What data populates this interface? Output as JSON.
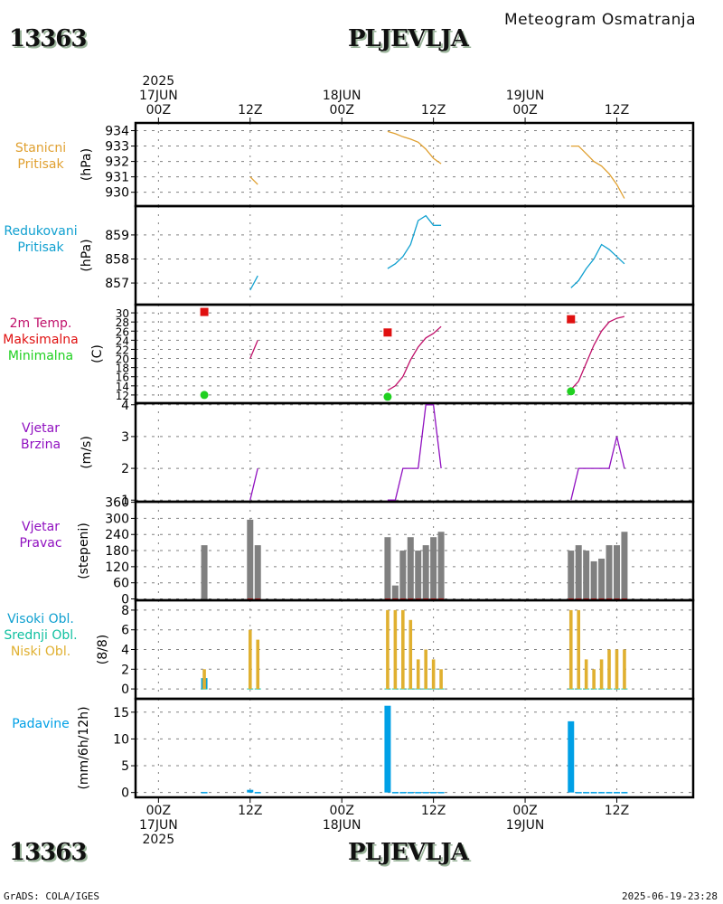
{
  "header": {
    "station_id": "13363",
    "station_name": "PLJEVLJA",
    "subtitle": "Meteogram Osmatranja"
  },
  "footer": {
    "station_id": "13363",
    "station_name": "PLJEVLJA",
    "credit": "GrADS: COLA/IGES",
    "timestamp": "2025-06-19-23:28"
  },
  "time_axis": {
    "top_labels": [
      {
        "hour": 0,
        "lines": [
          "2025",
          "17JUN",
          "00Z"
        ]
      },
      {
        "hour": 12,
        "lines": [
          "12Z"
        ]
      },
      {
        "hour": 24,
        "lines": [
          "18JUN",
          "00Z"
        ]
      },
      {
        "hour": 36,
        "lines": [
          "12Z"
        ]
      },
      {
        "hour": 48,
        "lines": [
          "19JUN",
          "00Z"
        ]
      },
      {
        "hour": 60,
        "lines": [
          "12Z"
        ]
      }
    ],
    "bottom_labels": [
      {
        "hour": 0,
        "lines": [
          "00Z",
          "17JUN",
          "2025"
        ]
      },
      {
        "hour": 12,
        "lines": [
          "12Z"
        ]
      },
      {
        "hour": 24,
        "lines": [
          "00Z",
          "18JUN"
        ]
      },
      {
        "hour": 36,
        "lines": [
          "12Z"
        ]
      },
      {
        "hour": 48,
        "lines": [
          "00Z",
          "19JUN"
        ]
      },
      {
        "hour": 60,
        "lines": [
          "12Z"
        ]
      }
    ]
  },
  "colors": {
    "station_pressure": "#e0a030",
    "reduced_pressure": "#10a0d0",
    "temp": "#c0106a",
    "temp_max": "#e01010",
    "temp_min": "#20d020",
    "wind_speed": "#9010c0",
    "wind_dir": "#808080",
    "cloud_high": "#10a0d0",
    "cloud_mid": "#10c0a0",
    "cloud_low": "#e0b030",
    "precip": "#00a0e6"
  },
  "chart_data": [
    {
      "type": "line",
      "id": "station_pressure",
      "labels": [
        "Stanicni",
        "Pritisak"
      ],
      "ylabel": "(hPa)",
      "yticks": [
        930,
        931,
        932,
        933,
        934
      ],
      "ylim": [
        929.1,
        934.5
      ],
      "xlim_hours": [
        -3,
        70
      ],
      "segments": [
        {
          "x": [
            12,
            13
          ],
          "y": [
            931.0,
            930.5
          ]
        },
        {
          "x": [
            30,
            31,
            32,
            33,
            34,
            35,
            36,
            37
          ],
          "y": [
            933.95,
            933.8,
            933.6,
            933.45,
            933.25,
            932.8,
            932.2,
            931.85
          ]
        },
        {
          "x": [
            54,
            55,
            56,
            57,
            58,
            59,
            60,
            61
          ],
          "y": [
            933.0,
            933.0,
            932.5,
            932.0,
            931.7,
            931.2,
            930.5,
            929.6
          ]
        }
      ]
    },
    {
      "type": "line",
      "id": "reduced_pressure",
      "labels": [
        "Redukovani",
        "Pritisak"
      ],
      "ylabel": "(hPa)",
      "yticks": [
        857,
        858,
        859
      ],
      "ylim": [
        856.1,
        860.2
      ],
      "xlim_hours": [
        -3,
        70
      ],
      "segments": [
        {
          "x": [
            12,
            13
          ],
          "y": [
            856.7,
            857.3
          ]
        },
        {
          "x": [
            30,
            31,
            32,
            33,
            34,
            35,
            36,
            37
          ],
          "y": [
            857.6,
            857.8,
            858.1,
            858.6,
            859.6,
            859.8,
            859.4,
            859.4
          ]
        },
        {
          "x": [
            54,
            55,
            56,
            57,
            58,
            59,
            60,
            61
          ],
          "y": [
            856.8,
            857.1,
            857.6,
            858.0,
            858.6,
            858.4,
            858.1,
            857.8
          ]
        }
      ]
    },
    {
      "type": "line",
      "id": "temperature",
      "labels": [
        "2m Temp.",
        "Maksimalna",
        "Minimalna"
      ],
      "ylabel": "(C)",
      "yticks": [
        12,
        14,
        16,
        18,
        20,
        22,
        24,
        26,
        28,
        30
      ],
      "ylim": [
        10.2,
        31.8
      ],
      "xlim_hours": [
        -3,
        70
      ],
      "segments": [
        {
          "x": [
            12,
            13
          ],
          "y": [
            20.0,
            24.0
          ]
        },
        {
          "x": [
            30,
            31,
            32,
            33,
            34,
            35,
            36,
            37
          ],
          "y": [
            13.0,
            14.0,
            16.0,
            19.7,
            22.5,
            24.5,
            25.5,
            27.0
          ]
        },
        {
          "x": [
            54,
            55,
            56,
            57,
            58,
            59,
            60,
            61
          ],
          "y": [
            13.2,
            15.0,
            19.0,
            22.9,
            26.0,
            28.0,
            28.8,
            29.2
          ]
        }
      ],
      "max": [
        {
          "x": 6,
          "y": 30.2
        },
        {
          "x": 30,
          "y": 25.7
        },
        {
          "x": 54,
          "y": 28.6
        }
      ],
      "min": [
        {
          "x": 6,
          "y": 12.0
        },
        {
          "x": 30,
          "y": 11.6
        },
        {
          "x": 54,
          "y": 12.8
        }
      ]
    },
    {
      "type": "line",
      "id": "wind_speed",
      "labels": [
        "Vjetar",
        "Brzina"
      ],
      "ylabel": "(m/s)",
      "yticks": [
        1,
        2,
        3,
        4
      ],
      "ylim": [
        0.95,
        4.05
      ],
      "xlim_hours": [
        -3,
        70
      ],
      "segments": [
        {
          "x": [
            12,
            13
          ],
          "y": [
            1,
            2
          ]
        },
        {
          "x": [
            30,
            31,
            32,
            33,
            34,
            35,
            36,
            37
          ],
          "y": [
            1,
            1,
            2,
            2,
            2,
            4,
            4,
            2
          ]
        },
        {
          "x": [
            54,
            55,
            56,
            57,
            58,
            59,
            60,
            61
          ],
          "y": [
            1,
            2,
            2,
            2,
            2,
            2,
            3,
            2
          ]
        }
      ]
    },
    {
      "type": "bar",
      "id": "wind_direction",
      "labels": [
        "Vjetar",
        "Pravac"
      ],
      "ylabel": "(stepeni)",
      "yticks": [
        0,
        60,
        120,
        180,
        240,
        300,
        360
      ],
      "ylim": [
        -5,
        362
      ],
      "xlim_hours": [
        -3,
        70
      ],
      "x": [
        6,
        12,
        13,
        30,
        31,
        32,
        33,
        34,
        35,
        36,
        37,
        54,
        55,
        56,
        57,
        58,
        59,
        60,
        61
      ],
      "values": [
        200,
        295,
        200,
        230,
        50,
        180,
        230,
        180,
        200,
        230,
        250,
        180,
        200,
        180,
        140,
        150,
        200,
        200,
        250
      ],
      "calm_marks_x": [
        12,
        13,
        30,
        31,
        32,
        33,
        34,
        35,
        36,
        37,
        54,
        55,
        56,
        57,
        58,
        59,
        60,
        61
      ]
    },
    {
      "type": "bar",
      "id": "clouds",
      "labels": [
        "Visoki Obl.",
        "Srednji Obl.",
        "Niski Obl."
      ],
      "ylabel": "(8/8)",
      "yticks": [
        0,
        2,
        4,
        6,
        8
      ],
      "ylim": [
        -1,
        9
      ],
      "xlim_hours": [
        -3,
        70
      ],
      "x": [
        6,
        12,
        13,
        30,
        31,
        32,
        33,
        34,
        35,
        36,
        37,
        54,
        55,
        56,
        57,
        58,
        59,
        60,
        61
      ],
      "series": [
        {
          "name": "Visoki Obl.",
          "values": [
            1.1,
            0,
            0,
            0,
            0,
            0,
            0,
            0,
            0,
            0,
            0,
            0,
            0,
            0,
            0,
            0,
            0,
            0,
            0
          ]
        },
        {
          "name": "Srednji Obl.",
          "values": [
            0,
            0,
            0,
            0,
            0,
            0,
            0,
            0,
            0,
            0,
            0,
            0,
            0,
            0,
            0,
            0,
            0,
            0,
            0
          ]
        },
        {
          "name": "Niski Obl.",
          "values": [
            2,
            6,
            5,
            8,
            8,
            8,
            7,
            3,
            4,
            3,
            2,
            8,
            8,
            3,
            2,
            3,
            4,
            4,
            4
          ]
        }
      ]
    },
    {
      "type": "bar",
      "id": "precipitation",
      "labels": [
        "Padavine"
      ],
      "ylabel": "(mm/6h/12h)",
      "yticks": [
        0,
        5,
        10,
        15
      ],
      "ylim": [
        -0.9,
        17.5
      ],
      "xlim_hours": [
        -3,
        70
      ],
      "x": [
        6,
        12,
        13,
        30,
        31,
        32,
        33,
        34,
        35,
        36,
        37,
        54,
        55,
        56,
        57,
        58,
        59,
        60,
        61
      ],
      "values": [
        0.1,
        0.5,
        0.1,
        16.2,
        0.1,
        0.1,
        0.1,
        0.1,
        0.1,
        0.1,
        0.1,
        13.3,
        0.1,
        0.1,
        0.1,
        0.1,
        0.1,
        0.1,
        0.1
      ]
    }
  ]
}
